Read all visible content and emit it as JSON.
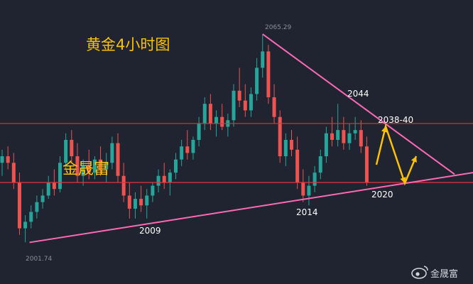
{
  "title": "黄金4小时图",
  "brand": "金晟富",
  "watermark": {
    "text": "金晟富",
    "icon": "weibo-logo-icon"
  },
  "colors": {
    "background": "#1f2430",
    "up": "#26a69a",
    "down": "#ef5350",
    "trendline": "#ff69b4",
    "level": "#e0343b",
    "arrow": "#ffc107",
    "title": "#ffc107"
  },
  "chart_data": {
    "type": "candlestick",
    "title": "黄金4小时图",
    "ylim": [
      1998,
      2068
    ],
    "levels": [
      2038,
      2020
    ],
    "price_labels": {
      "high": "2065.29",
      "low": "2001.74"
    },
    "annotations": [
      "2044",
      "2038-40",
      "2014",
      "2009",
      "2020"
    ],
    "trendlines": [
      {
        "name": "下降趋势线",
        "from": [
          "high",
          2065.29
        ],
        "to": [
          "right",
          2022.5
        ]
      },
      {
        "name": "上升趋势线",
        "from": [
          "low",
          2001.7
        ],
        "to": [
          "right",
          2023
        ]
      }
    ],
    "candles": [
      [
        2026,
        2030,
        2022,
        2028
      ],
      [
        2028,
        2031,
        2024,
        2026
      ],
      [
        2026,
        2029,
        2018,
        2020
      ],
      [
        2020,
        2023,
        2004,
        2006
      ],
      [
        2006,
        2010,
        2001.74,
        2008
      ],
      [
        2008,
        2013,
        2006,
        2011
      ],
      [
        2011,
        2016,
        2009,
        2014
      ],
      [
        2014,
        2018,
        2012,
        2016
      ],
      [
        2016,
        2022,
        2015,
        2020
      ],
      [
        2020,
        2024,
        2016,
        2018
      ],
      [
        2018,
        2028,
        2017,
        2026
      ],
      [
        2026,
        2035,
        2024,
        2033
      ],
      [
        2033,
        2036,
        2026,
        2028
      ],
      [
        2028,
        2032,
        2020,
        2022
      ],
      [
        2022,
        2027,
        2019,
        2025
      ],
      [
        2025,
        2030,
        2021,
        2023
      ],
      [
        2023,
        2028,
        2021,
        2027
      ],
      [
        2027,
        2031,
        2022,
        2024
      ],
      [
        2024,
        2029,
        2020,
        2026
      ],
      [
        2026,
        2034,
        2024,
        2032
      ],
      [
        2032,
        2035,
        2020,
        2022
      ],
      [
        2022,
        2026,
        2014,
        2016
      ],
      [
        2016,
        2020,
        2009,
        2012
      ],
      [
        2012,
        2017,
        2009,
        2015
      ],
      [
        2015,
        2019,
        2011,
        2013
      ],
      [
        2013,
        2018,
        2009,
        2016
      ],
      [
        2016,
        2020,
        2014,
        2019
      ],
      [
        2019,
        2024,
        2017,
        2022
      ],
      [
        2022,
        2026,
        2018,
        2020
      ],
      [
        2020,
        2024,
        2016,
        2023
      ],
      [
        2023,
        2029,
        2021,
        2027
      ],
      [
        2027,
        2033,
        2025,
        2031
      ],
      [
        2031,
        2036,
        2027,
        2029
      ],
      [
        2029,
        2034,
        2027,
        2033
      ],
      [
        2033,
        2040,
        2031,
        2038
      ],
      [
        2038,
        2046,
        2036,
        2044
      ],
      [
        2044,
        2047,
        2036,
        2038
      ],
      [
        2038,
        2042,
        2034,
        2040
      ],
      [
        2040,
        2044,
        2036,
        2037
      ],
      [
        2037,
        2041,
        2034,
        2039
      ],
      [
        2039,
        2050,
        2037,
        2048
      ],
      [
        2048,
        2055,
        2043,
        2045
      ],
      [
        2045,
        2050,
        2040,
        2042
      ],
      [
        2042,
        2049,
        2040,
        2047
      ],
      [
        2047,
        2058,
        2045,
        2055
      ],
      [
        2055,
        2065.29,
        2052,
        2060
      ],
      [
        2060,
        2062,
        2044,
        2046
      ],
      [
        2046,
        2050,
        2038,
        2040
      ],
      [
        2040,
        2042,
        2026,
        2028
      ],
      [
        2028,
        2035,
        2025,
        2033
      ],
      [
        2033,
        2036,
        2028,
        2030
      ],
      [
        2030,
        2034,
        2018,
        2020
      ],
      [
        2020,
        2024,
        2014,
        2016
      ],
      [
        2016,
        2022,
        2013,
        2019
      ],
      [
        2019,
        2025,
        2017,
        2023
      ],
      [
        2023,
        2030,
        2021,
        2028
      ],
      [
        2028,
        2037,
        2026,
        2035
      ],
      [
        2035,
        2040,
        2031,
        2033
      ],
      [
        2033,
        2044,
        2031,
        2036
      ],
      [
        2036,
        2040,
        2030,
        2032
      ],
      [
        2032,
        2038,
        2030,
        2035
      ],
      [
        2035,
        2040,
        2033,
        2036
      ],
      [
        2036,
        2039,
        2029,
        2031
      ],
      [
        2031,
        2034,
        2019,
        2020
      ]
    ]
  }
}
